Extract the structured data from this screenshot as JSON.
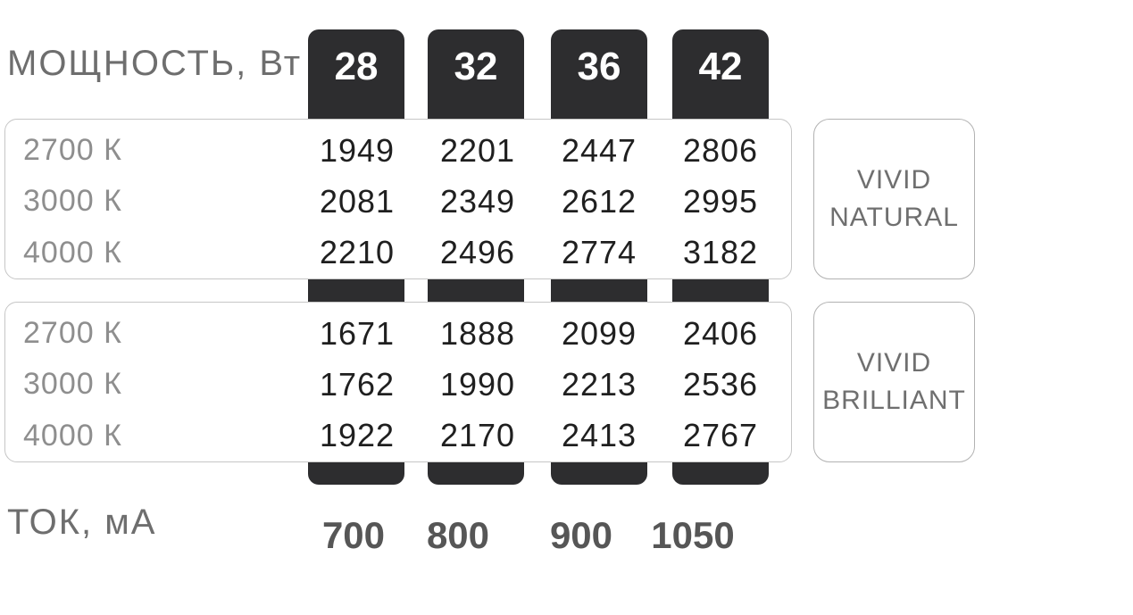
{
  "labels": {
    "power": "МОЩНОСТЬ, Вт",
    "current": "ТОК, мА"
  },
  "products": [
    {
      "name": "VIVID NATURAL",
      "line1": "VIVID",
      "line2": "NATURAL"
    },
    {
      "name": "VIVID BRILLIANT",
      "line1": "VIVID",
      "line2": "BRILLIANT"
    }
  ],
  "colors": {
    "pill_background": "#2d2d2f",
    "pill_text": "#ffffff",
    "axis_label_gray": "#6e6e6e",
    "row_label_gray": "#8e8e8e",
    "value_text": "#1f1f1f",
    "table_border": "#c6c6c6",
    "product_border": "#b2b2b2",
    "product_text": "#6f6f6f",
    "current_value_gray": "#565656",
    "background": "#ffffff"
  },
  "chart_data": {
    "type": "table",
    "title": "Luminous flux by power and color temperature",
    "power_label": "МОЩНОСТЬ, Вт",
    "current_label": "ТОК, мА",
    "power_w": [
      28,
      32,
      36,
      42
    ],
    "current_ma": [
      700,
      800,
      900,
      1050
    ],
    "series": [
      {
        "name": "VIVID NATURAL",
        "rows": [
          {
            "color_temperature": "2700 К",
            "values": [
              1949,
              2201,
              2447,
              2806
            ]
          },
          {
            "color_temperature": "3000 К",
            "values": [
              2081,
              2349,
              2612,
              2995
            ]
          },
          {
            "color_temperature": "4000 К",
            "values": [
              2210,
              2496,
              2774,
              3182
            ]
          }
        ]
      },
      {
        "name": "VIVID BRILLIANT",
        "rows": [
          {
            "color_temperature": "2700 К",
            "values": [
              1671,
              1888,
              2099,
              2406
            ]
          },
          {
            "color_temperature": "3000 К",
            "values": [
              1762,
              1990,
              2213,
              2536
            ]
          },
          {
            "color_temperature": "4000 К",
            "values": [
              1922,
              2170,
              2413,
              2767
            ]
          }
        ]
      }
    ]
  }
}
